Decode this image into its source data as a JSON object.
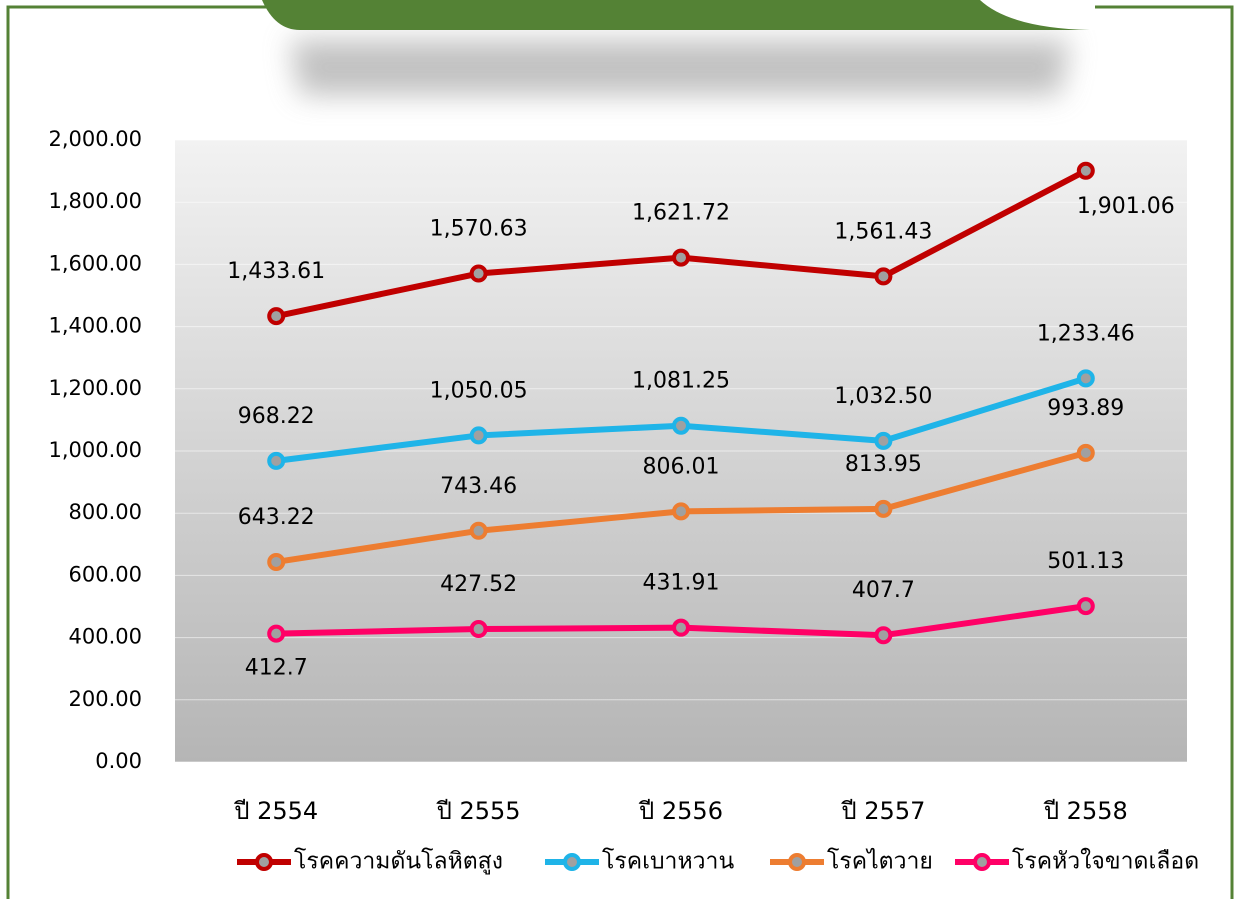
{
  "chart_data": {
    "type": "line",
    "categories": [
      "ปี 2554",
      "ปี 2555",
      "ปี 2556",
      "ปี 2557",
      "ปี 2558"
    ],
    "series": [
      {
        "name": "โรคความดันโลหิตสูง",
        "color": "#c00000",
        "values": [
          1433.61,
          1570.63,
          1621.72,
          1561.43,
          1901.06
        ],
        "value_labels": [
          "1,433.61",
          "1,570.63",
          "1,621.72",
          "1,561.43",
          "1,901.06"
        ]
      },
      {
        "name": "โรคเบาหวาน",
        "color": "#1fb4e8",
        "values": [
          968.22,
          1050.05,
          1081.25,
          1032.5,
          1233.46
        ],
        "value_labels": [
          "968.22",
          "1,050.05",
          "1,081.25",
          "1,032.50",
          "1,233.46"
        ]
      },
      {
        "name": "โรคไตวาย",
        "color": "#ed7d31",
        "values": [
          643.22,
          743.46,
          806.01,
          813.95,
          993.89
        ],
        "value_labels": [
          "643.22",
          "743.46",
          "806.01",
          "813.95",
          "993.89"
        ]
      },
      {
        "name": "โรคหัวใจขาดเลือด",
        "color": "#ff0066",
        "values": [
          412.7,
          427.52,
          431.91,
          407.7,
          501.13
        ],
        "value_labels": [
          "412.7",
          "427.52",
          "431.91",
          "407.7",
          "501.13"
        ]
      }
    ],
    "ylim": [
      0,
      2000
    ],
    "yticks": [
      {
        "value": 0,
        "label": "0.00"
      },
      {
        "value": 200,
        "label": "200.00"
      },
      {
        "value": 400,
        "label": "400.00"
      },
      {
        "value": 600,
        "label": "600.00"
      },
      {
        "value": 800,
        "label": "800.00"
      },
      {
        "value": 1000,
        "label": "1,000.00"
      },
      {
        "value": 1200,
        "label": "1,200.00"
      },
      {
        "value": 1400,
        "label": "1,400.00"
      },
      {
        "value": 1600,
        "label": "1,600.00"
      },
      {
        "value": 1800,
        "label": "1,800.00"
      },
      {
        "value": 2000,
        "label": "2,000.00"
      }
    ],
    "grid": true,
    "legend": "bottom"
  }
}
